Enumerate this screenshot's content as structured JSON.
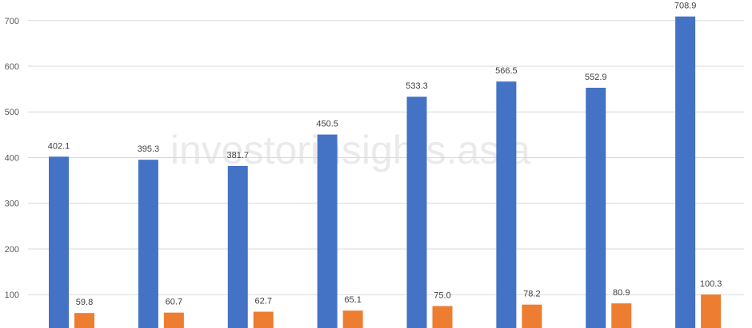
{
  "watermark": "investorinsights.asia",
  "chart_data": {
    "type": "bar",
    "categories": [
      "",
      "",
      "",
      "",
      "",
      "",
      "",
      ""
    ],
    "series": [
      {
        "values": [
          402.1,
          395.3,
          381.7,
          450.5,
          533.3,
          566.5,
          552.9,
          708.9
        ],
        "color": "#4472c4"
      },
      {
        "values": [
          59.8,
          60.7,
          62.7,
          65.1,
          75.0,
          78.2,
          80.9,
          100.3
        ],
        "color": "#ed7d31"
      }
    ],
    "yticks": [
      100,
      200,
      300,
      400,
      500,
      600,
      700
    ],
    "ylim": [
      27,
      745
    ],
    "grid": true,
    "legend": "none"
  }
}
